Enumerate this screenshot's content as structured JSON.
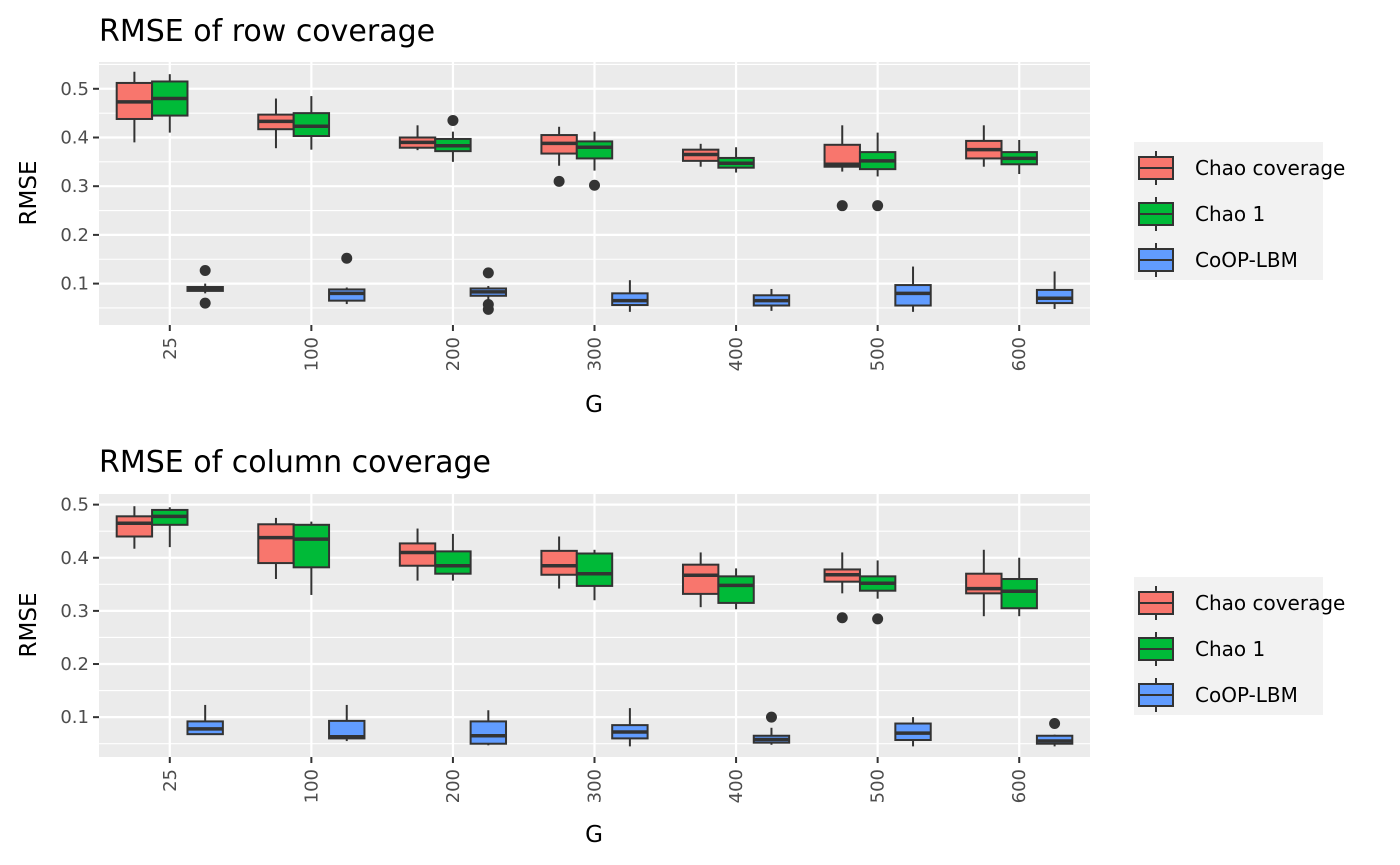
{
  "chart_data": [
    {
      "type": "box",
      "title": "RMSE of row coverage",
      "xlabel": "G",
      "ylabel": "RMSE",
      "categories": [
        "25",
        "100",
        "200",
        "300",
        "400",
        "500",
        "600"
      ],
      "y_ticks": [
        "0.1",
        "0.2",
        "0.3",
        "0.4",
        "0.5"
      ],
      "ylim": [
        0.015,
        0.555
      ],
      "grid": true,
      "legend_position": "right",
      "series": [
        {
          "name": "Chao coverage",
          "color": "#F8766D",
          "boxes": [
            {
              "category": "25",
              "lower": 0.39,
              "q1": 0.438,
              "median": 0.473,
              "q3": 0.512,
              "upper": 0.535,
              "outliers": []
            },
            {
              "category": "100",
              "lower": 0.378,
              "q1": 0.417,
              "median": 0.433,
              "q3": 0.447,
              "upper": 0.48,
              "outliers": []
            },
            {
              "category": "200",
              "lower": 0.374,
              "q1": 0.379,
              "median": 0.39,
              "q3": 0.4,
              "upper": 0.425,
              "outliers": []
            },
            {
              "category": "300",
              "lower": 0.342,
              "q1": 0.367,
              "median": 0.388,
              "q3": 0.405,
              "upper": 0.422,
              "outliers": [
                0.31
              ]
            },
            {
              "category": "400",
              "lower": 0.34,
              "q1": 0.352,
              "median": 0.365,
              "q3": 0.375,
              "upper": 0.387,
              "outliers": []
            },
            {
              "category": "500",
              "lower": 0.33,
              "q1": 0.34,
              "median": 0.345,
              "q3": 0.385,
              "upper": 0.425,
              "outliers": [
                0.26
              ]
            },
            {
              "category": "600",
              "lower": 0.34,
              "q1": 0.357,
              "median": 0.375,
              "q3": 0.393,
              "upper": 0.425,
              "outliers": []
            }
          ]
        },
        {
          "name": "Chao 1",
          "color": "#00BA38",
          "boxes": [
            {
              "category": "25",
              "lower": 0.41,
              "q1": 0.445,
              "median": 0.48,
              "q3": 0.515,
              "upper": 0.53,
              "outliers": []
            },
            {
              "category": "100",
              "lower": 0.375,
              "q1": 0.403,
              "median": 0.423,
              "q3": 0.45,
              "upper": 0.485,
              "outliers": []
            },
            {
              "category": "200",
              "lower": 0.35,
              "q1": 0.372,
              "median": 0.383,
              "q3": 0.397,
              "upper": 0.412,
              "outliers": [
                0.435
              ]
            },
            {
              "category": "300",
              "lower": 0.332,
              "q1": 0.357,
              "median": 0.38,
              "q3": 0.392,
              "upper": 0.412,
              "outliers": [
                0.302
              ]
            },
            {
              "category": "400",
              "lower": 0.328,
              "q1": 0.338,
              "median": 0.347,
              "q3": 0.358,
              "upper": 0.38,
              "outliers": []
            },
            {
              "category": "500",
              "lower": 0.32,
              "q1": 0.335,
              "median": 0.352,
              "q3": 0.37,
              "upper": 0.41,
              "outliers": [
                0.26
              ]
            },
            {
              "category": "600",
              "lower": 0.325,
              "q1": 0.345,
              "median": 0.357,
              "q3": 0.37,
              "upper": 0.395,
              "outliers": []
            }
          ]
        },
        {
          "name": "CoOP-LBM",
          "color": "#619CFF",
          "boxes": [
            {
              "category": "25",
              "lower": 0.08,
              "q1": 0.085,
              "median": 0.088,
              "q3": 0.093,
              "upper": 0.1,
              "outliers": [
                0.127,
                0.06
              ]
            },
            {
              "category": "100",
              "lower": 0.058,
              "q1": 0.065,
              "median": 0.08,
              "q3": 0.088,
              "upper": 0.092,
              "outliers": [
                0.152
              ]
            },
            {
              "category": "200",
              "lower": 0.065,
              "q1": 0.075,
              "median": 0.083,
              "q3": 0.09,
              "upper": 0.095,
              "outliers": [
                0.122,
                0.057,
                0.047
              ]
            },
            {
              "category": "300",
              "lower": 0.042,
              "q1": 0.056,
              "median": 0.065,
              "q3": 0.08,
              "upper": 0.107,
              "outliers": []
            },
            {
              "category": "400",
              "lower": 0.044,
              "q1": 0.055,
              "median": 0.065,
              "q3": 0.076,
              "upper": 0.089,
              "outliers": []
            },
            {
              "category": "500",
              "lower": 0.042,
              "q1": 0.055,
              "median": 0.08,
              "q3": 0.097,
              "upper": 0.135,
              "outliers": []
            },
            {
              "category": "600",
              "lower": 0.048,
              "q1": 0.06,
              "median": 0.07,
              "q3": 0.087,
              "upper": 0.125,
              "outliers": []
            }
          ]
        }
      ]
    },
    {
      "type": "box",
      "title": "RMSE of column coverage",
      "xlabel": "G",
      "ylabel": "RMSE",
      "categories": [
        "25",
        "100",
        "200",
        "300",
        "400",
        "500",
        "600"
      ],
      "y_ticks": [
        "0.1",
        "0.2",
        "0.3",
        "0.4",
        "0.5"
      ],
      "ylim": [
        0.025,
        0.52
      ],
      "grid": true,
      "legend_position": "right",
      "series": [
        {
          "name": "Chao coverage",
          "color": "#F8766D",
          "boxes": [
            {
              "category": "25",
              "lower": 0.417,
              "q1": 0.44,
              "median": 0.465,
              "q3": 0.478,
              "upper": 0.497,
              "outliers": []
            },
            {
              "category": "100",
              "lower": 0.36,
              "q1": 0.39,
              "median": 0.438,
              "q3": 0.463,
              "upper": 0.475,
              "outliers": []
            },
            {
              "category": "200",
              "lower": 0.357,
              "q1": 0.385,
              "median": 0.41,
              "q3": 0.427,
              "upper": 0.455,
              "outliers": []
            },
            {
              "category": "300",
              "lower": 0.342,
              "q1": 0.368,
              "median": 0.385,
              "q3": 0.413,
              "upper": 0.44,
              "outliers": []
            },
            {
              "category": "400",
              "lower": 0.307,
              "q1": 0.332,
              "median": 0.367,
              "q3": 0.387,
              "upper": 0.41,
              "outliers": []
            },
            {
              "category": "500",
              "lower": 0.333,
              "q1": 0.355,
              "median": 0.368,
              "q3": 0.378,
              "upper": 0.41,
              "outliers": [
                0.287
              ]
            },
            {
              "category": "600",
              "lower": 0.29,
              "q1": 0.333,
              "median": 0.342,
              "q3": 0.37,
              "upper": 0.415,
              "outliers": []
            }
          ]
        },
        {
          "name": "Chao 1",
          "color": "#00BA38",
          "boxes": [
            {
              "category": "25",
              "lower": 0.42,
              "q1": 0.462,
              "median": 0.478,
              "q3": 0.49,
              "upper": 0.495,
              "outliers": []
            },
            {
              "category": "100",
              "lower": 0.33,
              "q1": 0.382,
              "median": 0.435,
              "q3": 0.462,
              "upper": 0.468,
              "outliers": []
            },
            {
              "category": "200",
              "lower": 0.357,
              "q1": 0.37,
              "median": 0.385,
              "q3": 0.412,
              "upper": 0.445,
              "outliers": []
            },
            {
              "category": "300",
              "lower": 0.32,
              "q1": 0.347,
              "median": 0.37,
              "q3": 0.408,
              "upper": 0.415,
              "outliers": []
            },
            {
              "category": "400",
              "lower": 0.303,
              "q1": 0.315,
              "median": 0.348,
              "q3": 0.365,
              "upper": 0.38,
              "outliers": []
            },
            {
              "category": "500",
              "lower": 0.323,
              "q1": 0.338,
              "median": 0.352,
              "q3": 0.365,
              "upper": 0.395,
              "outliers": [
                0.285
              ]
            },
            {
              "category": "600",
              "lower": 0.29,
              "q1": 0.305,
              "median": 0.337,
              "q3": 0.36,
              "upper": 0.4,
              "outliers": []
            }
          ]
        },
        {
          "name": "CoOP-LBM",
          "color": "#619CFF",
          "boxes": [
            {
              "category": "25",
              "lower": 0.067,
              "q1": 0.068,
              "median": 0.078,
              "q3": 0.092,
              "upper": 0.123,
              "outliers": []
            },
            {
              "category": "100",
              "lower": 0.055,
              "q1": 0.06,
              "median": 0.063,
              "q3": 0.093,
              "upper": 0.123,
              "outliers": []
            },
            {
              "category": "200",
              "lower": 0.047,
              "q1": 0.05,
              "median": 0.065,
              "q3": 0.092,
              "upper": 0.113,
              "outliers": []
            },
            {
              "category": "300",
              "lower": 0.045,
              "q1": 0.06,
              "median": 0.072,
              "q3": 0.085,
              "upper": 0.117,
              "outliers": []
            },
            {
              "category": "400",
              "lower": 0.048,
              "q1": 0.052,
              "median": 0.058,
              "q3": 0.065,
              "upper": 0.08,
              "outliers": [
                0.1
              ]
            },
            {
              "category": "500",
              "lower": 0.045,
              "q1": 0.057,
              "median": 0.07,
              "q3": 0.088,
              "upper": 0.1,
              "outliers": []
            },
            {
              "category": "600",
              "lower": 0.045,
              "q1": 0.05,
              "median": 0.055,
              "q3": 0.065,
              "upper": 0.067,
              "outliers": [
                0.088
              ]
            }
          ]
        }
      ]
    }
  ]
}
